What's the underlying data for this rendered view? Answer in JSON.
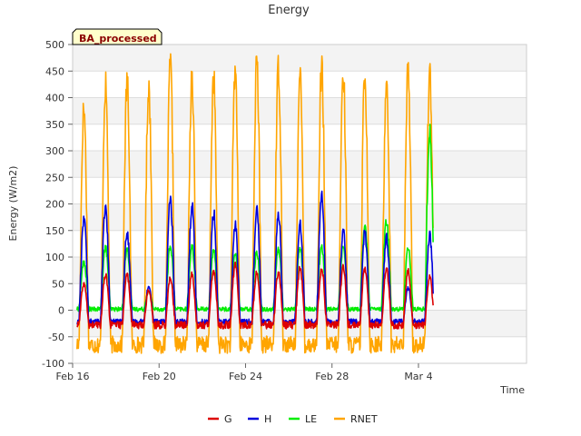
{
  "chart_data": {
    "type": "line",
    "title": "Energy",
    "badge": "BA_processed",
    "xlabel": "Time",
    "ylabel": "Energy (W/m2)",
    "ylim": [
      -100,
      500
    ],
    "yticks": [
      -100,
      -50,
      0,
      50,
      100,
      150,
      200,
      250,
      300,
      350,
      400,
      450,
      500
    ],
    "xlim": [
      "2021-02-16",
      "2021-03-09"
    ],
    "xticks": [
      {
        "date": "2021-02-16",
        "label": "Feb 16"
      },
      {
        "date": "2021-02-20",
        "label": "Feb 20"
      },
      {
        "date": "2021-02-24",
        "label": "Feb 24"
      },
      {
        "date": "2021-02-28",
        "label": "Feb 28"
      },
      {
        "date": "2021-03-04",
        "label": "Mar 4"
      }
    ],
    "grid": true,
    "legend_position": "bottom",
    "series": [
      {
        "name": "G",
        "color": "#dd0000",
        "daily_max": [
          50,
          67,
          67,
          38,
          60,
          67,
          75,
          85,
          72,
          72,
          80,
          78,
          80,
          78,
          78,
          75,
          65
        ],
        "night_value": -28
      },
      {
        "name": "H",
        "color": "#0000dd",
        "daily_max": [
          175,
          197,
          145,
          45,
          205,
          200,
          183,
          163,
          195,
          182,
          165,
          222,
          148,
          145,
          137,
          42,
          140
        ],
        "night_value": -22
      },
      {
        "name": "LE",
        "color": "#00ee00",
        "daily_max": [
          90,
          118,
          115,
          35,
          120,
          120,
          110,
          105,
          110,
          115,
          118,
          120,
          120,
          160,
          168,
          120,
          338
        ],
        "night_value": 2
      },
      {
        "name": "RNET",
        "color": "#ffa500",
        "daily_max": [
          380,
          422,
          428,
          420,
          462,
          445,
          440,
          452,
          462,
          455,
          437,
          455,
          445,
          442,
          435,
          450,
          455
        ],
        "night_value": -65
      }
    ],
    "day_start": "2021-02-16",
    "peak_hour": 12.5,
    "day_length_hours": 11
  }
}
